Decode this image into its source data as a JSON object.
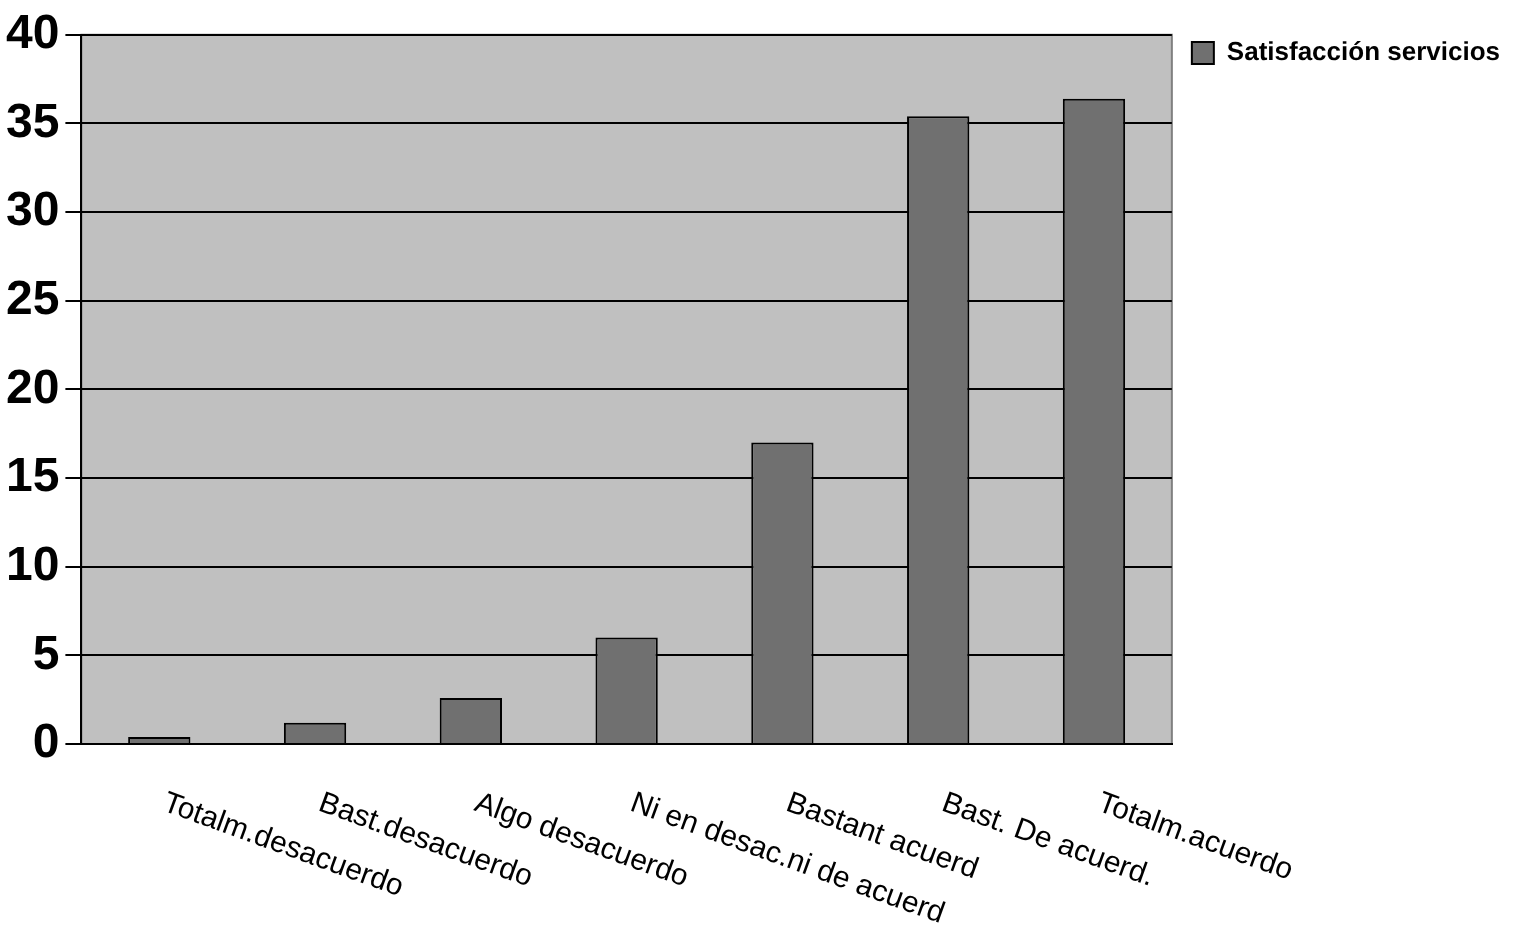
{
  "chart_data": {
    "type": "bar",
    "categories": [
      "Totalm.desacuerdo",
      "Bast.desacuerdo",
      "Algo desacuerdo",
      "Ni en desac.ni de acuerd",
      "Bastant acuerd",
      "Bast. De acuerd.",
      "Totalm.acuerdo"
    ],
    "series": [
      {
        "name": "Satisfacción servicios",
        "color": "#707070",
        "values": [
          0.4,
          1.2,
          2.6,
          6,
          17,
          35.4,
          36.4
        ]
      }
    ],
    "ylim": [
      0,
      40
    ],
    "yticks": [
      0,
      5,
      10,
      15,
      20,
      25,
      30,
      35,
      40
    ],
    "grid": "y",
    "legend": "right"
  }
}
